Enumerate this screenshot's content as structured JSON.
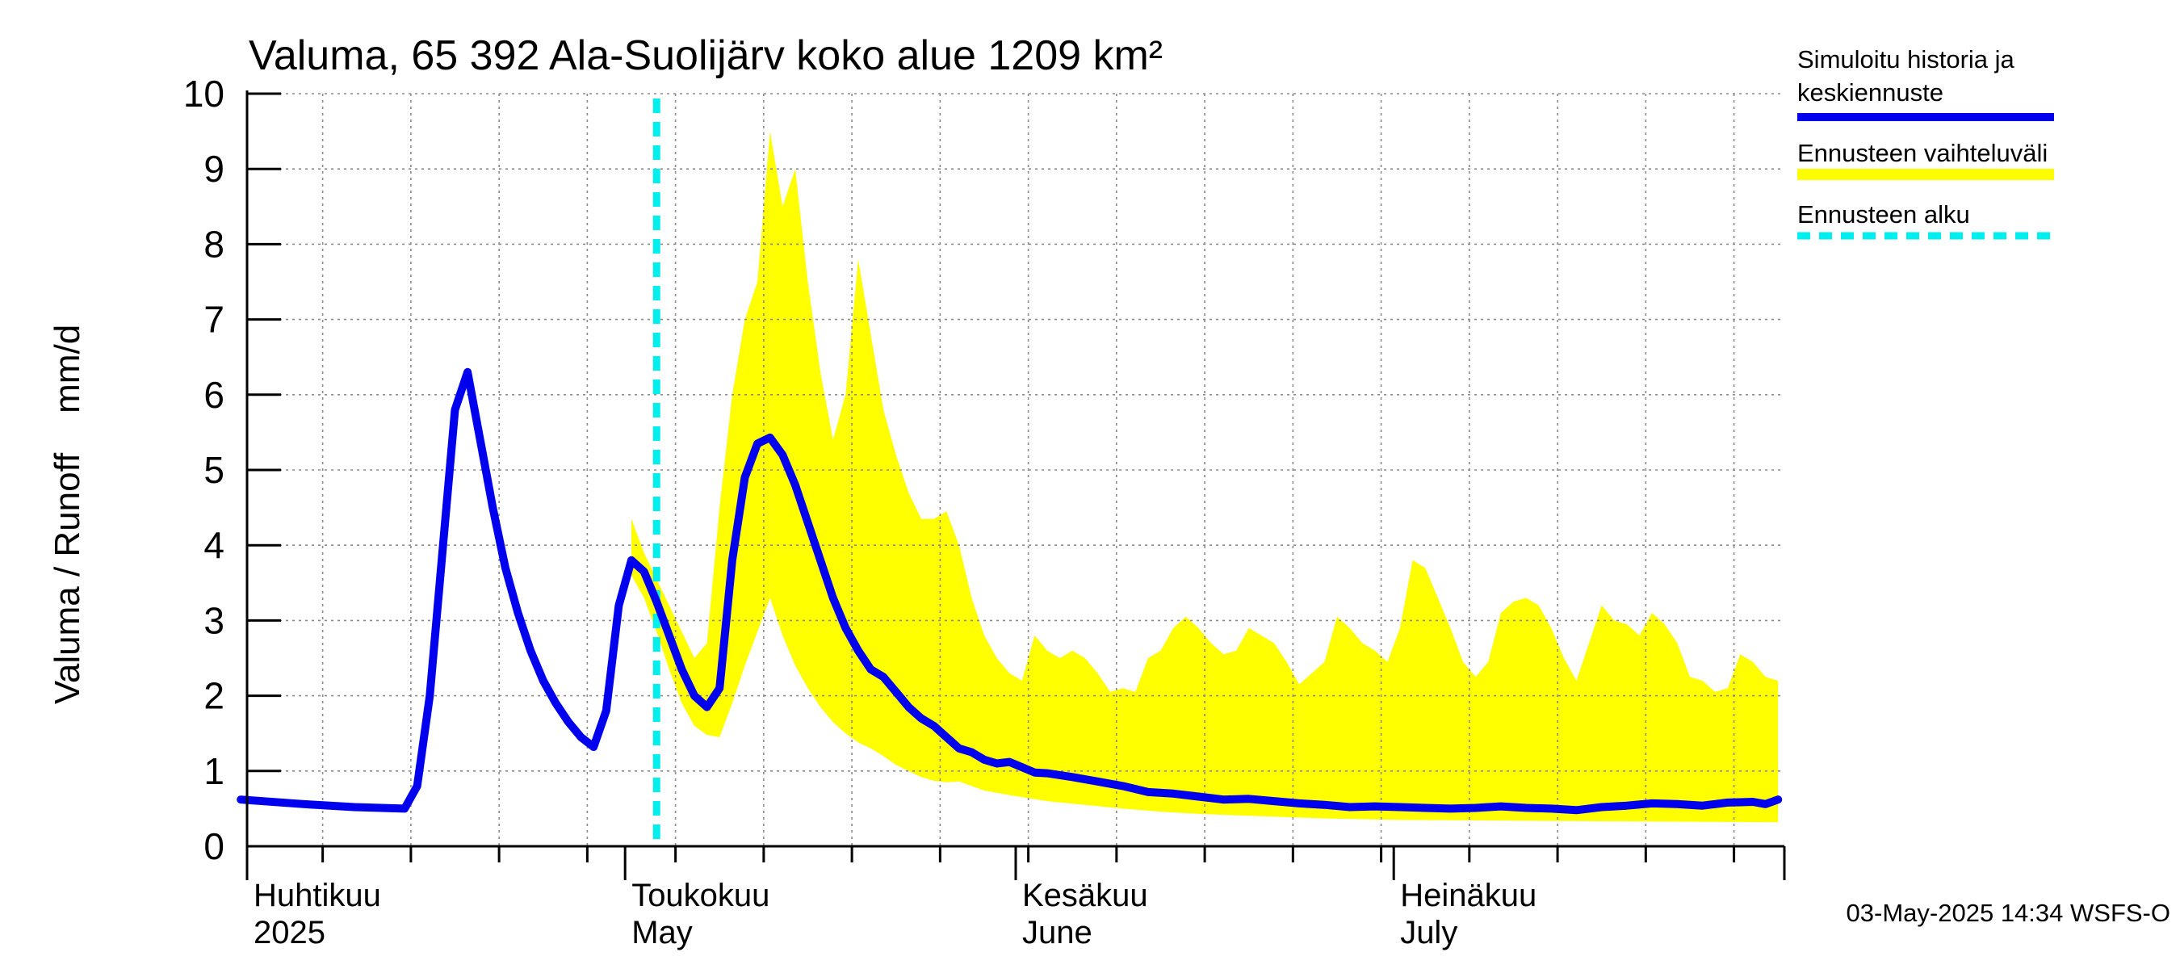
{
  "chart_data": {
    "type": "line",
    "title": "Valuma, 65 392 Ala-Suolijärv koko alue 1209 km²",
    "ylabel": "Valuma / Runoff    mm/d",
    "xlabel": "",
    "ylim": [
      0,
      10
    ],
    "yticks": [
      0,
      1,
      2,
      3,
      4,
      5,
      6,
      7,
      8,
      9,
      10
    ],
    "xlim": [
      "2025-04-01",
      "2025-07-31"
    ],
    "grid": true,
    "legend_position": "right",
    "month_labels": [
      {
        "date": "2025-04-01",
        "fi": "Huhtikuu",
        "en": "2025"
      },
      {
        "date": "2025-05-01",
        "fi": "Toukokuu",
        "en": "May"
      },
      {
        "date": "2025-06-01",
        "fi": "Kesäkuu",
        "en": "June"
      },
      {
        "date": "2025-07-01",
        "fi": "Heinäkuu",
        "en": "July"
      }
    ],
    "forecast_start": "2025-05-03",
    "series": [
      {
        "name": "Simuloitu historia ja keskiennuste",
        "color": "#0000ee",
        "points": [
          [
            "2025-03-31",
            0.62
          ],
          [
            "2025-04-05",
            0.56
          ],
          [
            "2025-04-09",
            0.52
          ],
          [
            "2025-04-13",
            0.5
          ],
          [
            "2025-04-14",
            0.8
          ],
          [
            "2025-04-15",
            2.0
          ],
          [
            "2025-04-16",
            3.9
          ],
          [
            "2025-04-17",
            5.8
          ],
          [
            "2025-04-18",
            6.3
          ],
          [
            "2025-04-19",
            5.4
          ],
          [
            "2025-04-20",
            4.5
          ],
          [
            "2025-04-21",
            3.7
          ],
          [
            "2025-04-22",
            3.1
          ],
          [
            "2025-04-23",
            2.6
          ],
          [
            "2025-04-24",
            2.2
          ],
          [
            "2025-04-25",
            1.9
          ],
          [
            "2025-04-26",
            1.65
          ],
          [
            "2025-04-27",
            1.45
          ],
          [
            "2025-04-28",
            1.32
          ],
          [
            "2025-04-29",
            1.8
          ],
          [
            "2025-04-30",
            3.2
          ],
          [
            "2025-05-01",
            3.8
          ],
          [
            "2025-05-02",
            3.65
          ],
          [
            "2025-05-03",
            3.25
          ],
          [
            "2025-05-04",
            2.8
          ],
          [
            "2025-05-05",
            2.35
          ],
          [
            "2025-05-06",
            2.0
          ],
          [
            "2025-05-07",
            1.85
          ],
          [
            "2025-05-08",
            2.1
          ],
          [
            "2025-05-09",
            3.8
          ],
          [
            "2025-05-10",
            4.9
          ],
          [
            "2025-05-11",
            5.35
          ],
          [
            "2025-05-12",
            5.43
          ],
          [
            "2025-05-13",
            5.2
          ],
          [
            "2025-05-14",
            4.8
          ],
          [
            "2025-05-15",
            4.3
          ],
          [
            "2025-05-16",
            3.8
          ],
          [
            "2025-05-17",
            3.3
          ],
          [
            "2025-05-18",
            2.9
          ],
          [
            "2025-05-19",
            2.6
          ],
          [
            "2025-05-20",
            2.35
          ],
          [
            "2025-05-21",
            2.25
          ],
          [
            "2025-05-22",
            2.05
          ],
          [
            "2025-05-23",
            1.85
          ],
          [
            "2025-05-24",
            1.7
          ],
          [
            "2025-05-25",
            1.6
          ],
          [
            "2025-05-26",
            1.45
          ],
          [
            "2025-05-27",
            1.3
          ],
          [
            "2025-05-28",
            1.25
          ],
          [
            "2025-05-29",
            1.15
          ],
          [
            "2025-05-30",
            1.1
          ],
          [
            "2025-05-31",
            1.12
          ],
          [
            "2025-06-01",
            1.05
          ],
          [
            "2025-06-02",
            0.98
          ],
          [
            "2025-06-03",
            0.97
          ],
          [
            "2025-06-05",
            0.92
          ],
          [
            "2025-06-07",
            0.86
          ],
          [
            "2025-06-09",
            0.8
          ],
          [
            "2025-06-11",
            0.72
          ],
          [
            "2025-06-13",
            0.7
          ],
          [
            "2025-06-15",
            0.66
          ],
          [
            "2025-06-17",
            0.62
          ],
          [
            "2025-06-19",
            0.63
          ],
          [
            "2025-06-21",
            0.6
          ],
          [
            "2025-06-23",
            0.57
          ],
          [
            "2025-06-25",
            0.55
          ],
          [
            "2025-06-27",
            0.52
          ],
          [
            "2025-06-29",
            0.53
          ],
          [
            "2025-07-01",
            0.52
          ],
          [
            "2025-07-03",
            0.51
          ],
          [
            "2025-07-05",
            0.5
          ],
          [
            "2025-07-07",
            0.51
          ],
          [
            "2025-07-09",
            0.53
          ],
          [
            "2025-07-11",
            0.51
          ],
          [
            "2025-07-13",
            0.5
          ],
          [
            "2025-07-15",
            0.48
          ],
          [
            "2025-07-17",
            0.52
          ],
          [
            "2025-07-19",
            0.54
          ],
          [
            "2025-07-21",
            0.57
          ],
          [
            "2025-07-23",
            0.56
          ],
          [
            "2025-07-25",
            0.54
          ],
          [
            "2025-07-27",
            0.58
          ],
          [
            "2025-07-29",
            0.59
          ],
          [
            "2025-07-30",
            0.56
          ],
          [
            "2025-07-31",
            0.62
          ]
        ]
      }
    ],
    "band": {
      "name": "Ennusteen vaihteluväli",
      "color": "#ffff00",
      "upper": [
        [
          "2025-05-01",
          4.35
        ],
        [
          "2025-05-02",
          3.9
        ],
        [
          "2025-05-04",
          3.2
        ],
        [
          "2025-05-06",
          2.5
        ],
        [
          "2025-05-07",
          2.7
        ],
        [
          "2025-05-08",
          4.5
        ],
        [
          "2025-05-09",
          6.0
        ],
        [
          "2025-05-10",
          7.0
        ],
        [
          "2025-05-11",
          7.5
        ],
        [
          "2025-05-12",
          9.5
        ],
        [
          "2025-05-13",
          8.5
        ],
        [
          "2025-05-14",
          9.0
        ],
        [
          "2025-05-15",
          7.5
        ],
        [
          "2025-05-16",
          6.3
        ],
        [
          "2025-05-17",
          5.4
        ],
        [
          "2025-05-18",
          6.0
        ],
        [
          "2025-05-19",
          7.8
        ],
        [
          "2025-05-20",
          6.8
        ],
        [
          "2025-05-21",
          5.8
        ],
        [
          "2025-05-22",
          5.2
        ],
        [
          "2025-05-23",
          4.7
        ],
        [
          "2025-05-24",
          4.35
        ],
        [
          "2025-05-25",
          4.35
        ],
        [
          "2025-05-26",
          4.45
        ],
        [
          "2025-05-27",
          4.0
        ],
        [
          "2025-05-28",
          3.3
        ],
        [
          "2025-05-29",
          2.8
        ],
        [
          "2025-05-30",
          2.5
        ],
        [
          "2025-05-31",
          2.3
        ],
        [
          "2025-06-01",
          2.2
        ],
        [
          "2025-06-02",
          2.8
        ],
        [
          "2025-06-03",
          2.6
        ],
        [
          "2025-06-04",
          2.5
        ],
        [
          "2025-06-05",
          2.6
        ],
        [
          "2025-06-06",
          2.5
        ],
        [
          "2025-06-07",
          2.3
        ],
        [
          "2025-06-08",
          2.05
        ],
        [
          "2025-06-09",
          2.1
        ],
        [
          "2025-06-10",
          2.05
        ],
        [
          "2025-06-11",
          2.5
        ],
        [
          "2025-06-12",
          2.6
        ],
        [
          "2025-06-13",
          2.9
        ],
        [
          "2025-06-14",
          3.05
        ],
        [
          "2025-06-15",
          2.9
        ],
        [
          "2025-06-16",
          2.7
        ],
        [
          "2025-06-17",
          2.55
        ],
        [
          "2025-06-18",
          2.6
        ],
        [
          "2025-06-19",
          2.9
        ],
        [
          "2025-06-20",
          2.8
        ],
        [
          "2025-06-21",
          2.7
        ],
        [
          "2025-06-22",
          2.45
        ],
        [
          "2025-06-23",
          2.15
        ],
        [
          "2025-06-24",
          2.3
        ],
        [
          "2025-06-25",
          2.45
        ],
        [
          "2025-06-26",
          3.05
        ],
        [
          "2025-06-27",
          2.9
        ],
        [
          "2025-06-28",
          2.7
        ],
        [
          "2025-06-29",
          2.6
        ],
        [
          "2025-06-30",
          2.45
        ],
        [
          "2025-07-01",
          2.9
        ],
        [
          "2025-07-02",
          3.8
        ],
        [
          "2025-07-03",
          3.7
        ],
        [
          "2025-07-04",
          3.3
        ],
        [
          "2025-07-05",
          2.9
        ],
        [
          "2025-07-06",
          2.45
        ],
        [
          "2025-07-07",
          2.25
        ],
        [
          "2025-07-08",
          2.45
        ],
        [
          "2025-07-09",
          3.1
        ],
        [
          "2025-07-10",
          3.25
        ],
        [
          "2025-07-11",
          3.3
        ],
        [
          "2025-07-12",
          3.2
        ],
        [
          "2025-07-13",
          2.9
        ],
        [
          "2025-07-14",
          2.5
        ],
        [
          "2025-07-15",
          2.2
        ],
        [
          "2025-07-16",
          2.7
        ],
        [
          "2025-07-17",
          3.2
        ],
        [
          "2025-07-18",
          3.0
        ],
        [
          "2025-07-19",
          2.95
        ],
        [
          "2025-07-20",
          2.8
        ],
        [
          "2025-07-21",
          3.1
        ],
        [
          "2025-07-22",
          2.95
        ],
        [
          "2025-07-23",
          2.7
        ],
        [
          "2025-07-24",
          2.25
        ],
        [
          "2025-07-25",
          2.2
        ],
        [
          "2025-07-26",
          2.05
        ],
        [
          "2025-07-27",
          2.1
        ],
        [
          "2025-07-28",
          2.55
        ],
        [
          "2025-07-29",
          2.45
        ],
        [
          "2025-07-30",
          2.25
        ],
        [
          "2025-07-31",
          2.2
        ]
      ],
      "lower": [
        [
          "2025-05-01",
          3.6
        ],
        [
          "2025-05-02",
          3.3
        ],
        [
          "2025-05-03",
          2.85
        ],
        [
          "2025-05-04",
          2.35
        ],
        [
          "2025-05-05",
          1.9
        ],
        [
          "2025-05-06",
          1.6
        ],
        [
          "2025-05-07",
          1.48
        ],
        [
          "2025-05-08",
          1.45
        ],
        [
          "2025-05-09",
          1.9
        ],
        [
          "2025-05-10",
          2.4
        ],
        [
          "2025-05-11",
          2.85
        ],
        [
          "2025-05-12",
          3.3
        ],
        [
          "2025-05-13",
          2.8
        ],
        [
          "2025-05-14",
          2.4
        ],
        [
          "2025-05-15",
          2.1
        ],
        [
          "2025-05-16",
          1.85
        ],
        [
          "2025-05-17",
          1.65
        ],
        [
          "2025-05-18",
          1.5
        ],
        [
          "2025-05-19",
          1.38
        ],
        [
          "2025-05-20",
          1.3
        ],
        [
          "2025-05-21",
          1.2
        ],
        [
          "2025-05-22",
          1.08
        ],
        [
          "2025-05-23",
          1.0
        ],
        [
          "2025-05-24",
          0.92
        ],
        [
          "2025-05-25",
          0.87
        ],
        [
          "2025-05-26",
          0.85
        ],
        [
          "2025-05-27",
          0.86
        ],
        [
          "2025-05-28",
          0.8
        ],
        [
          "2025-05-29",
          0.74
        ],
        [
          "2025-05-31",
          0.68
        ],
        [
          "2025-06-03",
          0.6
        ],
        [
          "2025-06-06",
          0.55
        ],
        [
          "2025-06-09",
          0.5
        ],
        [
          "2025-06-12",
          0.46
        ],
        [
          "2025-06-15",
          0.43
        ],
        [
          "2025-06-20",
          0.4
        ],
        [
          "2025-06-25",
          0.37
        ],
        [
          "2025-07-01",
          0.35
        ],
        [
          "2025-07-10",
          0.34
        ],
        [
          "2025-07-20",
          0.33
        ],
        [
          "2025-07-31",
          0.32
        ]
      ]
    }
  },
  "legend": [
    {
      "label": "Simuloitu historia ja keskiennuste",
      "line1": "Simuloitu historia ja",
      "line2": "keskiennuste",
      "color": "#0000ee",
      "style": "solid"
    },
    {
      "label": "Ennusteen vaihteluväli",
      "line1": "Ennusteen vaihteluväli",
      "color": "#ffff00",
      "style": "band"
    },
    {
      "label": "Ennusteen alku",
      "line1": "Ennusteen alku",
      "color": "#00eeee",
      "style": "dashed"
    }
  ],
  "footer": {
    "timestamp": "03-May-2025 14:34 WSFS-O"
  }
}
